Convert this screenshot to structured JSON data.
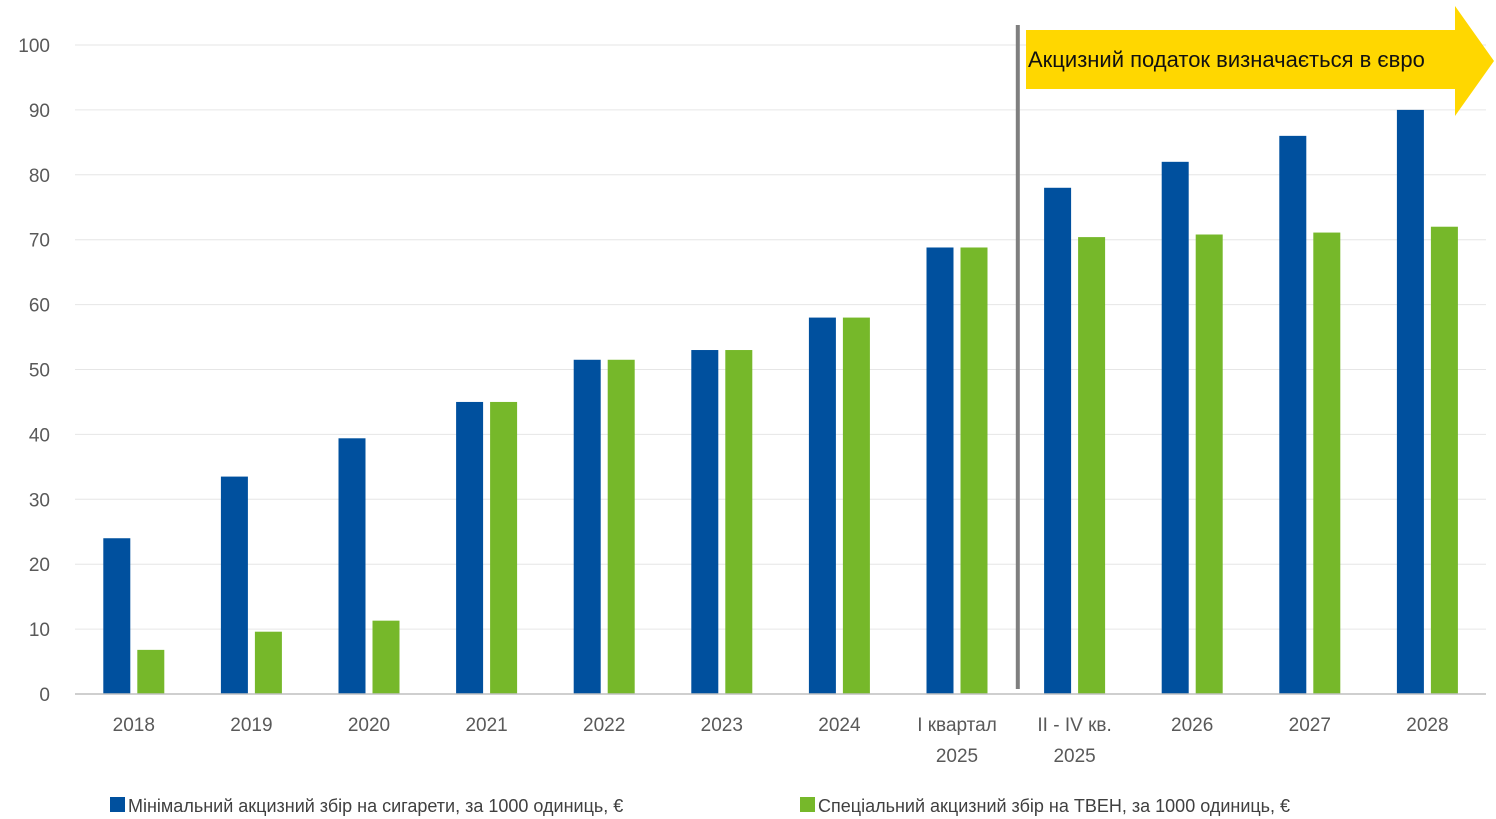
{
  "chart_data": {
    "type": "bar",
    "categories": [
      [
        "2018"
      ],
      [
        "2019"
      ],
      [
        "2020"
      ],
      [
        "2021"
      ],
      [
        "2022"
      ],
      [
        "2023"
      ],
      [
        "2024"
      ],
      [
        "I квартал",
        "2025"
      ],
      [
        "II - IV кв.",
        "2025"
      ],
      [
        "2026"
      ],
      [
        "2027"
      ],
      [
        "2028"
      ]
    ],
    "series": [
      {
        "name": "Мінімальний акцизний збір на сигарети, за 1000 одиниць, €",
        "color": "#00509E",
        "values": [
          24,
          33.5,
          39.4,
          45,
          51.5,
          53,
          58,
          68.8,
          78,
          82,
          86,
          90
        ]
      },
      {
        "name": "Спеціальний акцизний збір на ТВЕН, за 1000 одиниць, €",
        "color": "#76B82A",
        "values": [
          6.8,
          9.6,
          11.3,
          45,
          51.5,
          53,
          58,
          68.8,
          70.4,
          70.8,
          71.1,
          72
        ]
      }
    ],
    "ylim": [
      0,
      100
    ],
    "yticks": [
      0,
      10,
      20,
      30,
      40,
      50,
      60,
      70,
      80,
      90,
      100
    ],
    "grid": true,
    "legend_position": "bottom",
    "annotations": {
      "divider_after_category": 7,
      "banner_text": "Акцизний податок визначається в євро",
      "banner_color": "#FFD700"
    }
  }
}
